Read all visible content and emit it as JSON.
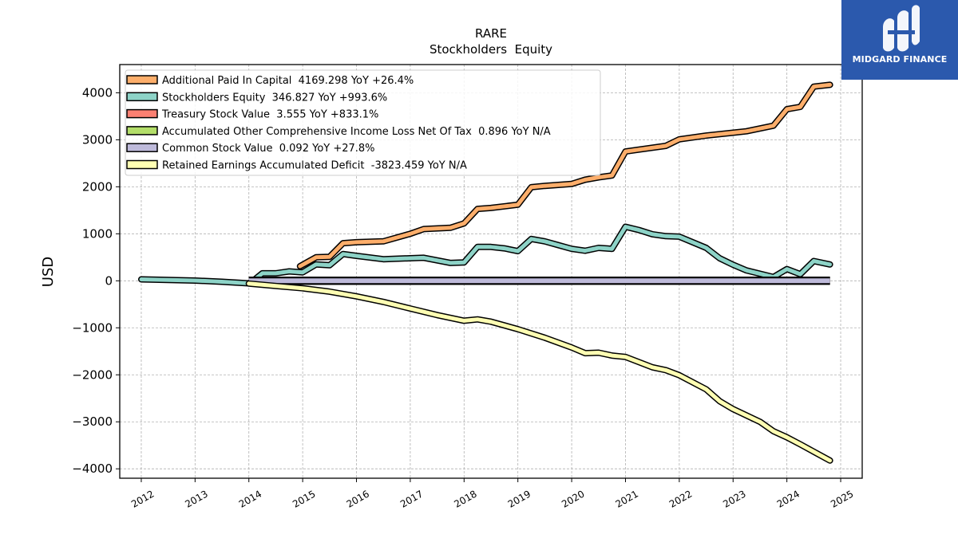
{
  "logo": {
    "text": "MIDGARD FINANCE",
    "bg_color": "#2b59ad"
  },
  "chart_data": {
    "type": "line",
    "title": "RARE",
    "subtitle": "Stockholders  Equity",
    "ylabel": "USD",
    "xlabel": "",
    "x_tick_labels": [
      "2012",
      "2013",
      "2014",
      "2015",
      "2016",
      "2017",
      "2018",
      "2019",
      "2020",
      "2021",
      "2022",
      "2023",
      "2024",
      "2025"
    ],
    "y_tick_labels": [
      "4000",
      "3000",
      "2000",
      "1000",
      "0",
      "−1000",
      "−2000",
      "−3000",
      "−4000"
    ],
    "y_ticks": [
      4000,
      3000,
      2000,
      1000,
      0,
      -1000,
      -2000,
      -3000,
      -4000
    ],
    "xlim": [
      2011.6,
      2025.4
    ],
    "ylim": [
      -4200,
      4600
    ],
    "grid": true,
    "legend_position": "top-left",
    "series": [
      {
        "name": "Additional Paid In Capital  4169.298 YoY +26.4%",
        "color": "#fdae6b",
        "x": [
          2014.95,
          2015.25,
          2015.5,
          2015.75,
          2016.0,
          2016.5,
          2017.0,
          2017.25,
          2017.75,
          2018.0,
          2018.25,
          2018.5,
          2019.0,
          2019.25,
          2019.5,
          2020.0,
          2020.25,
          2020.5,
          2020.75,
          2021.0,
          2021.25,
          2021.75,
          2022.0,
          2022.5,
          2023.0,
          2023.25,
          2023.75,
          2024.0,
          2024.25,
          2024.5,
          2024.8
        ],
        "y": [
          310,
          500,
          510,
          800,
          820,
          840,
          1000,
          1100,
          1130,
          1220,
          1530,
          1550,
          1620,
          1990,
          2020,
          2060,
          2150,
          2200,
          2240,
          2750,
          2790,
          2870,
          3010,
          3090,
          3150,
          3180,
          3300,
          3650,
          3700,
          4130,
          4169.298
        ]
      },
      {
        "name": "Stockholders Equity  346.827 YoY +993.6%",
        "color": "#8dd3c7",
        "x": [
          2012.0,
          2013.0,
          2013.5,
          2014.0,
          2014.1,
          2014.25,
          2014.5,
          2014.75,
          2015.0,
          2015.25,
          2015.5,
          2015.75,
          2016.0,
          2016.5,
          2017.0,
          2017.25,
          2017.75,
          2018.0,
          2018.25,
          2018.5,
          2018.75,
          2019.0,
          2019.25,
          2019.5,
          2019.75,
          2020.0,
          2020.25,
          2020.5,
          2020.75,
          2021.0,
          2021.25,
          2021.5,
          2021.75,
          2022.0,
          2022.5,
          2022.75,
          2023.0,
          2023.25,
          2023.75,
          2024.0,
          2024.25,
          2024.5,
          2024.8
        ],
        "y": [
          30,
          5,
          -20,
          -55,
          20,
          160,
          160,
          200,
          180,
          350,
          330,
          570,
          530,
          460,
          480,
          490,
          380,
          390,
          720,
          720,
          690,
          630,
          890,
          840,
          760,
          680,
          640,
          700,
          680,
          1150,
          1080,
          990,
          950,
          940,
          700,
          480,
          340,
          220,
          80,
          250,
          140,
          420,
          346.827
        ]
      },
      {
        "name": "Treasury Stock Value  3.555 YoY +833.1%",
        "color": "#fb8072",
        "x": [
          2014.0,
          2024.8
        ],
        "y": [
          0,
          3.555
        ]
      },
      {
        "name": "Accumulated Other Comprehensive Income Loss Net Of Tax  0.896 YoY N/A",
        "color": "#b3de69",
        "x": [
          2014.0,
          2024.8
        ],
        "y": [
          0,
          0.896
        ]
      },
      {
        "name": "Common Stock Value  0.092 YoY +27.8%",
        "color": "#bebada",
        "x": [
          2014.0,
          2024.8
        ],
        "y": [
          0,
          0.092
        ]
      },
      {
        "name": "Retained Earnings Accumulated Deficit  -3823.459 YoY N/A",
        "color": "#ffffb3",
        "x": [
          2014.0,
          2014.5,
          2015.0,
          2015.5,
          2016.0,
          2016.5,
          2017.0,
          2017.5,
          2018.0,
          2018.25,
          2018.5,
          2019.0,
          2019.5,
          2020.0,
          2020.25,
          2020.5,
          2020.75,
          2021.0,
          2021.5,
          2021.75,
          2022.0,
          2022.5,
          2022.75,
          2023.0,
          2023.5,
          2023.75,
          2024.0,
          2024.25,
          2024.8
        ],
        "y": [
          -60,
          -110,
          -160,
          -230,
          -330,
          -450,
          -590,
          -730,
          -850,
          -820,
          -870,
          -1030,
          -1210,
          -1420,
          -1540,
          -1530,
          -1590,
          -1620,
          -1840,
          -1900,
          -2010,
          -2310,
          -2560,
          -2730,
          -3000,
          -3200,
          -3330,
          -3480,
          -3823.459
        ]
      }
    ]
  }
}
